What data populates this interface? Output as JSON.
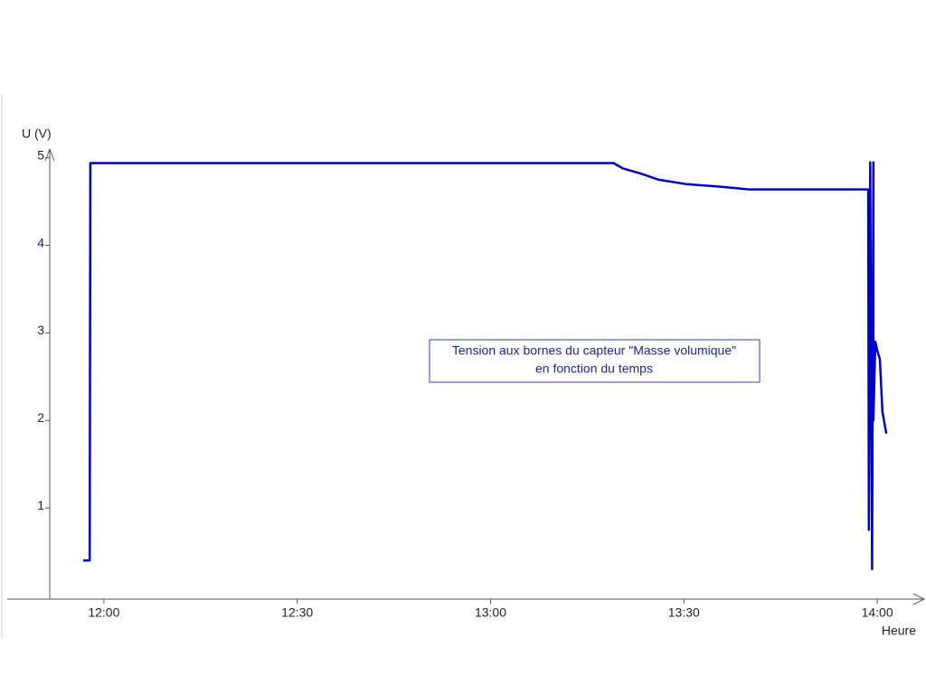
{
  "chart_data": {
    "type": "line",
    "title": "Tension aux bornes du capteur \"Masse volumique\"",
    "subtitle": "en fonction du temps",
    "y_label": "U (V)",
    "x_label": "Heure",
    "color": "#0000cc",
    "x": [
      716.8,
      717.8,
      717.9,
      799.1,
      800.5,
      803.3,
      806.1,
      810.3,
      815.9,
      820.1,
      838.6,
      838.7,
      838.9,
      839.2,
      839.4,
      839.4,
      839.7,
      840.0,
      840.4,
      840.8,
      841.4
    ],
    "values": [
      0.4,
      0.4,
      4.94,
      4.94,
      4.88,
      4.82,
      4.75,
      4.7,
      4.67,
      4.64,
      4.64,
      0.75,
      4.95,
      0.3,
      4.95,
      2.0,
      2.9,
      2.8,
      2.7,
      2.1,
      1.85
    ],
    "xlim": [
      711.6,
      847
    ],
    "ylim": [
      0,
      5.1
    ],
    "xticks": [
      {
        "value": 720,
        "label": "12:00"
      },
      {
        "value": 750,
        "label": "12:30"
      },
      {
        "value": 780,
        "label": "13:00"
      },
      {
        "value": 810,
        "label": "13:30"
      },
      {
        "value": 840,
        "label": "14:00"
      }
    ],
    "yticks": [
      1,
      2,
      3,
      4,
      5
    ]
  }
}
